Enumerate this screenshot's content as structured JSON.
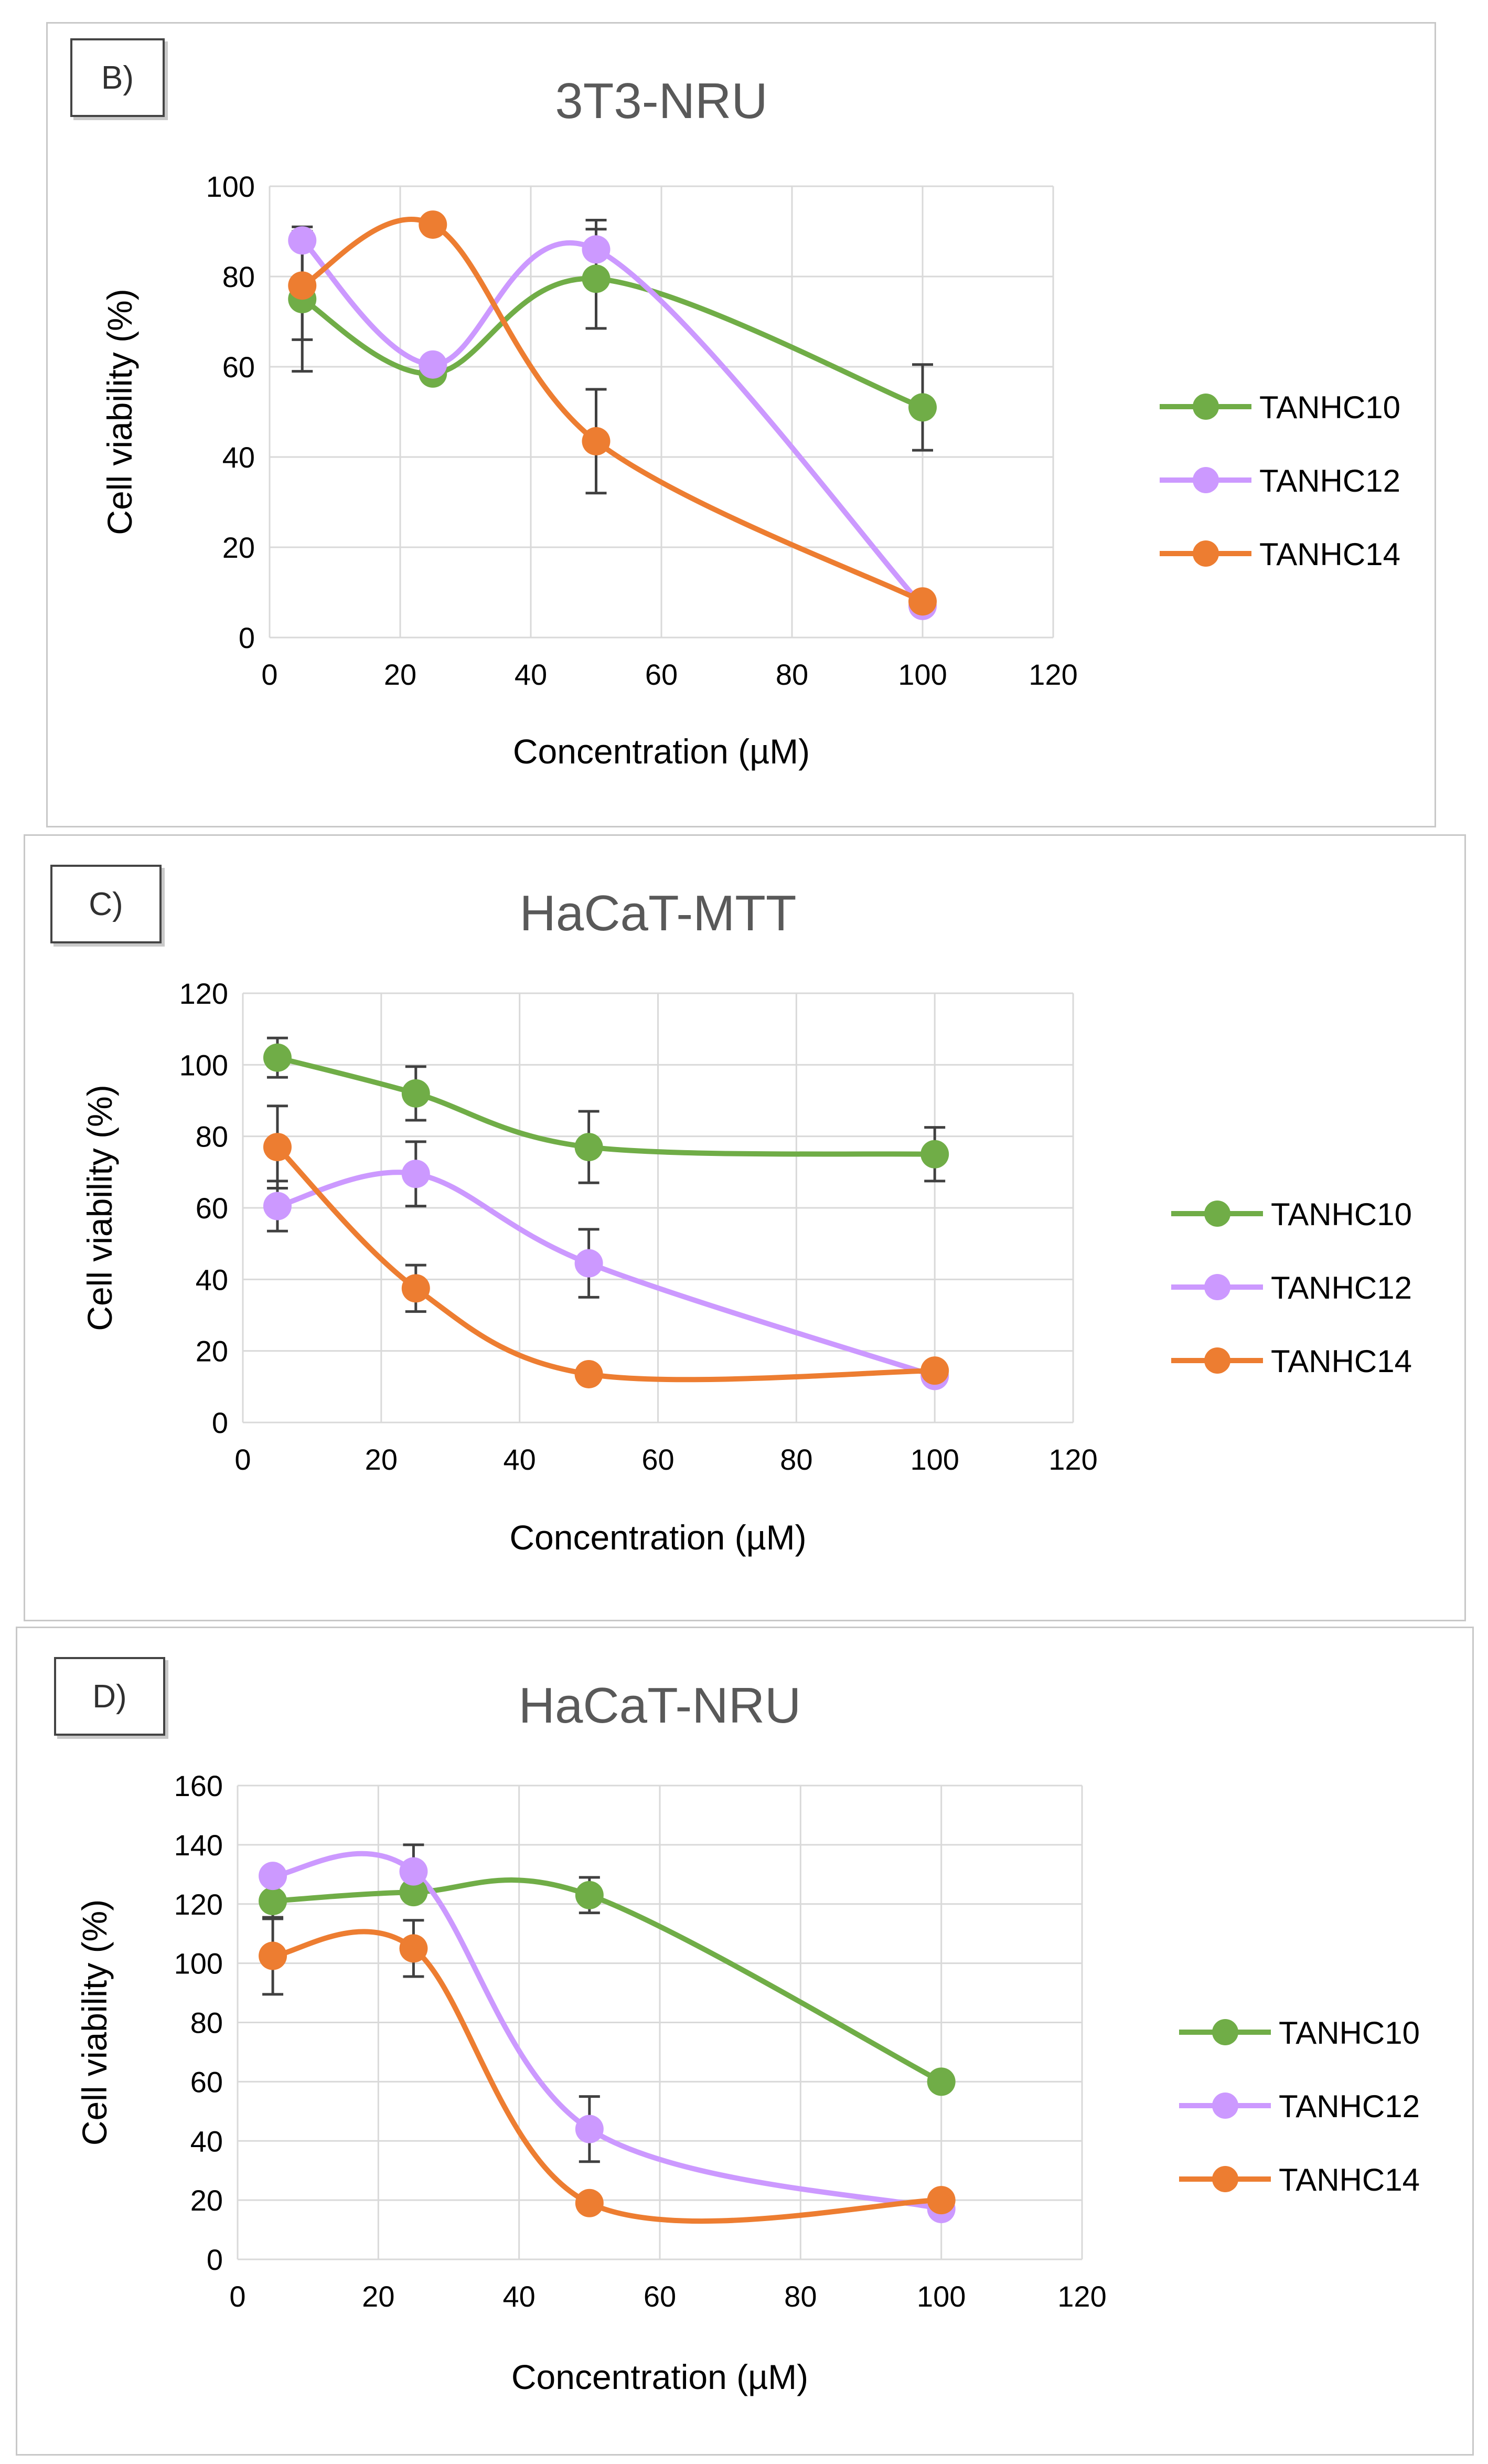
{
  "colors": {
    "TANHC10": "#70ad47",
    "TANHC12": "#cc99ff",
    "TANHC14": "#ed7d31",
    "grid": "#d9d9d9",
    "axis_text": "#000000",
    "title": "#595959",
    "error_bar": "#404040"
  },
  "chart_data": [
    {
      "panel_label": "B)",
      "type": "line",
      "title": "3T3-NRU",
      "xlabel": "Concentration (µM)",
      "ylabel": "Cell viability (%)",
      "xlim": [
        0,
        120
      ],
      "ylim": [
        0,
        100
      ],
      "xticks": [
        0,
        20,
        40,
        60,
        80,
        100,
        120
      ],
      "yticks": [
        0,
        20,
        40,
        60,
        80,
        100
      ],
      "x_tick_labels": [
        "0",
        "20",
        "40",
        "60",
        "80",
        "100",
        "120"
      ],
      "y_tick_labels": [
        "0",
        "20",
        "40",
        "60",
        "80",
        "100"
      ],
      "grid": true,
      "legend_position": "right",
      "x": [
        5,
        25,
        50,
        100
      ],
      "series": [
        {
          "name": "TANHC10",
          "values": [
            75,
            58.5,
            79.5,
            51
          ],
          "error": [
            16,
            0,
            11,
            9.5
          ]
        },
        {
          "name": "TANHC12",
          "values": [
            88,
            60.5,
            86,
            7
          ],
          "error": [
            0,
            0,
            6.5,
            0
          ]
        },
        {
          "name": "TANHC14",
          "values": [
            78,
            91.5,
            43.5,
            8
          ],
          "error": [
            12,
            0,
            11.5,
            0
          ]
        }
      ]
    },
    {
      "panel_label": "C)",
      "type": "line",
      "title": "HaCaT-MTT",
      "xlabel": "Concentration (µM)",
      "ylabel": "Cell viability (%)",
      "xlim": [
        0,
        120
      ],
      "ylim": [
        0,
        120
      ],
      "xticks": [
        0,
        20,
        40,
        60,
        80,
        100,
        120
      ],
      "yticks": [
        0,
        20,
        40,
        60,
        80,
        100,
        120
      ],
      "x_tick_labels": [
        "0",
        "20",
        "40",
        "60",
        "80",
        "100",
        "120"
      ],
      "y_tick_labels": [
        "0",
        "20",
        "40",
        "60",
        "80",
        "100",
        "120"
      ],
      "grid": true,
      "legend_position": "right",
      "x": [
        5,
        25,
        50,
        100
      ],
      "series": [
        {
          "name": "TANHC10",
          "values": [
            102,
            92,
            77,
            75
          ],
          "error": [
            5.5,
            7.5,
            10,
            7.5
          ]
        },
        {
          "name": "TANHC12",
          "values": [
            60.5,
            69.5,
            44.5,
            13
          ],
          "error": [
            7,
            9,
            9.5,
            0
          ]
        },
        {
          "name": "TANHC14",
          "values": [
            77,
            37.5,
            13.5,
            14.5
          ],
          "error": [
            11.5,
            6.5,
            0,
            0
          ]
        }
      ]
    },
    {
      "panel_label": "D)",
      "type": "line",
      "title": "HaCaT-NRU",
      "xlabel": "Concentration (µM)",
      "ylabel": "Cell viability (%)",
      "xlim": [
        0,
        120
      ],
      "ylim": [
        0,
        160
      ],
      "xticks": [
        0,
        20,
        40,
        60,
        80,
        100,
        120
      ],
      "yticks": [
        0,
        20,
        40,
        60,
        80,
        100,
        120,
        140,
        160
      ],
      "x_tick_labels": [
        "0",
        "20",
        "40",
        "60",
        "80",
        "100",
        "120"
      ],
      "y_tick_labels": [
        "0",
        "20",
        "40",
        "60",
        "80",
        "100",
        "120",
        "140",
        "160"
      ],
      "grid": true,
      "legend_position": "right",
      "x": [
        5,
        25,
        50,
        100
      ],
      "series": [
        {
          "name": "TANHC10",
          "values": [
            121,
            124,
            123,
            60
          ],
          "error": [
            6,
            0,
            6,
            0
          ]
        },
        {
          "name": "TANHC12",
          "values": [
            129.5,
            131,
            44,
            17
          ],
          "error": [
            0,
            9,
            11,
            0
          ]
        },
        {
          "name": "TANHC14",
          "values": [
            102.5,
            105,
            19,
            20
          ],
          "error": [
            13,
            9.5,
            0,
            0
          ]
        }
      ]
    }
  ]
}
